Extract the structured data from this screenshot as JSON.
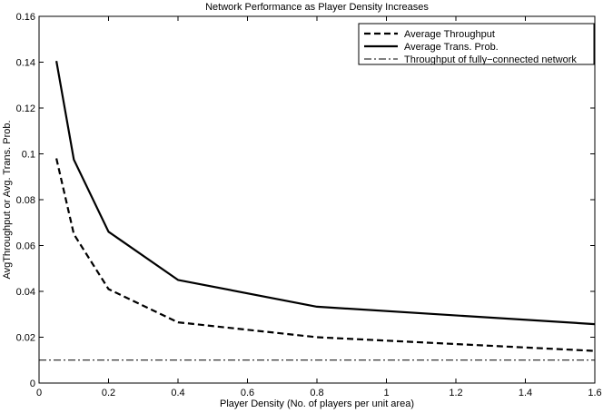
{
  "chart_data": {
    "type": "line",
    "title": "Network Performance as Player Density Increases",
    "xlabel": "Player Density (No. of players per unit area)",
    "ylabel": "AvgThroughput or Avg. Trans. Prob.",
    "xlim": [
      0,
      1.6
    ],
    "ylim": [
      0,
      0.16
    ],
    "xticks": [
      0,
      0.2,
      0.4,
      0.6,
      0.8,
      1,
      1.2,
      1.4,
      1.6
    ],
    "xtick_labels": [
      "0",
      "0.2",
      "0.4",
      "0.6",
      "0.8",
      "1",
      "1.2",
      "1.4",
      "1.6"
    ],
    "yticks": [
      0,
      0.02,
      0.04,
      0.06,
      0.08,
      0.1,
      0.12,
      0.14,
      0.16
    ],
    "ytick_labels": [
      "0",
      "0.02",
      "0.04",
      "0.06",
      "0.08",
      "0.1",
      "0.12",
      "0.14",
      "0.16"
    ],
    "grid": false,
    "legend_position": "top-right",
    "series": [
      {
        "name": "Average Throughput",
        "style": "dashed",
        "color": "#000000",
        "x": [
          0.05,
          0.1,
          0.2,
          0.4,
          0.8,
          1.6
        ],
        "y": [
          0.098,
          0.065,
          0.041,
          0.0265,
          0.02,
          0.014
        ]
      },
      {
        "name": "Average Trans. Prob.",
        "style": "solid",
        "color": "#000000",
        "x": [
          0.05,
          0.1,
          0.2,
          0.4,
          0.8,
          1.6
        ],
        "y": [
          0.1405,
          0.0975,
          0.066,
          0.045,
          0.0333,
          0.0257
        ]
      },
      {
        "name": "Throughput of fully−connected network",
        "style": "dashdot",
        "color": "#000000",
        "x": [
          0.0,
          1.6
        ],
        "y": [
          0.01,
          0.01
        ]
      }
    ]
  }
}
